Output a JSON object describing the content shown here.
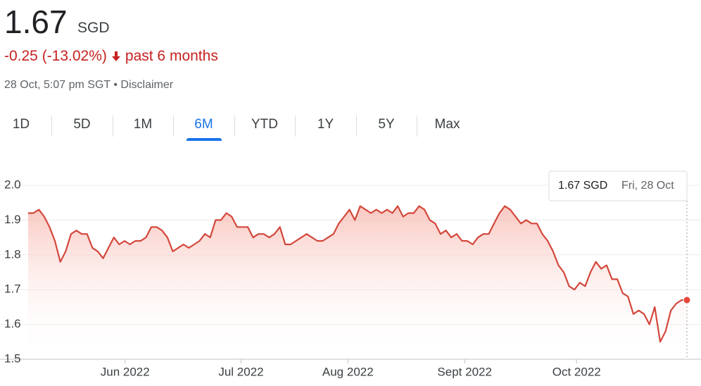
{
  "header": {
    "price": "1.67",
    "currency": "SGD",
    "change": "-0.25 (-13.02%)",
    "period": "past 6 months",
    "timestamp": "28 Oct, 5:07 pm SGT",
    "separator": "•",
    "disclaimer": "Disclaimer"
  },
  "tabs": [
    "1D",
    "5D",
    "1M",
    "6M",
    "YTD",
    "1Y",
    "5Y",
    "Max"
  ],
  "active_tab": 3,
  "tooltip": {
    "value": "1.67 SGD",
    "date": "Fri, 28 Oct"
  },
  "chart_data": {
    "type": "line",
    "color": "#d3473b",
    "grid": true,
    "values": [
      1.92,
      1.92,
      1.93,
      1.91,
      1.88,
      1.84,
      1.78,
      1.81,
      1.86,
      1.87,
      1.86,
      1.86,
      1.82,
      1.81,
      1.79,
      1.82,
      1.85,
      1.83,
      1.84,
      1.83,
      1.84,
      1.84,
      1.85,
      1.88,
      1.88,
      1.87,
      1.85,
      1.81,
      1.82,
      1.83,
      1.82,
      1.83,
      1.84,
      1.86,
      1.85,
      1.9,
      1.9,
      1.92,
      1.91,
      1.88,
      1.88,
      1.88,
      1.85,
      1.86,
      1.86,
      1.85,
      1.86,
      1.88,
      1.83,
      1.83,
      1.84,
      1.85,
      1.86,
      1.85,
      1.84,
      1.84,
      1.85,
      1.86,
      1.89,
      1.91,
      1.93,
      1.9,
      1.94,
      1.93,
      1.92,
      1.93,
      1.92,
      1.93,
      1.92,
      1.94,
      1.91,
      1.92,
      1.92,
      1.94,
      1.93,
      1.9,
      1.89,
      1.86,
      1.87,
      1.85,
      1.86,
      1.84,
      1.84,
      1.83,
      1.85,
      1.86,
      1.86,
      1.89,
      1.92,
      1.94,
      1.93,
      1.91,
      1.89,
      1.9,
      1.89,
      1.89,
      1.86,
      1.84,
      1.81,
      1.77,
      1.75,
      1.71,
      1.7,
      1.72,
      1.71,
      1.75,
      1.78,
      1.76,
      1.77,
      1.73,
      1.73,
      1.69,
      1.68,
      1.63,
      1.64,
      1.63,
      1.6,
      1.65,
      1.55,
      1.58,
      1.64,
      1.66,
      1.67,
      1.67
    ],
    "xlim": [
      0,
      123
    ],
    "xticks": [
      {
        "value": 18.1,
        "label": "Jun 2022"
      },
      {
        "value": 39.75,
        "label": "Jul 2022"
      },
      {
        "value": 59.7,
        "label": "Aug 2022"
      },
      {
        "value": 81.5,
        "label": "Sept 2022"
      },
      {
        "value": 102.4,
        "label": "Oct 2022"
      }
    ],
    "ylim": [
      1.5,
      2.0
    ],
    "yticks": [
      {
        "value": 1.5,
        "label": "1.5"
      },
      {
        "value": 1.6,
        "label": "1.6"
      },
      {
        "value": 1.7,
        "label": "1.7"
      },
      {
        "value": 1.8,
        "label": "1.8"
      },
      {
        "value": 1.9,
        "label": "1.9"
      },
      {
        "value": 2.0,
        "label": "2.0"
      }
    ]
  }
}
